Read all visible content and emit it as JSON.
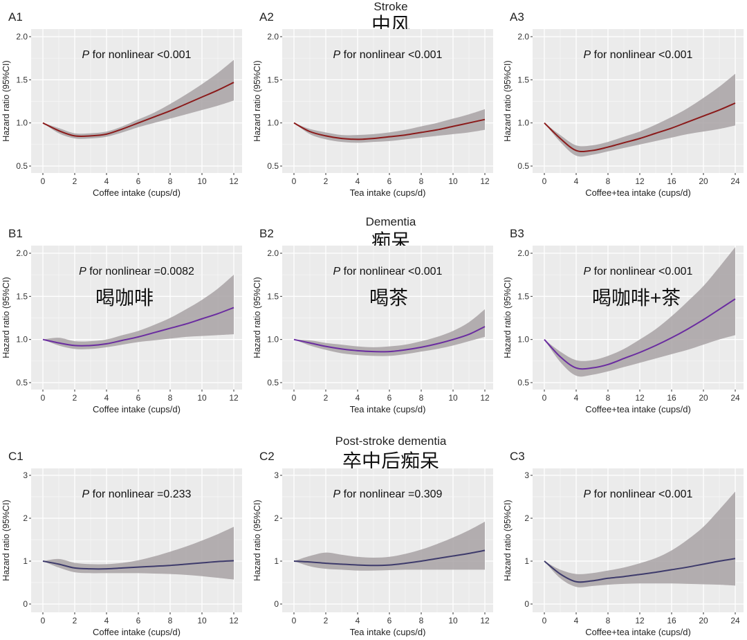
{
  "section_titles": [
    {
      "en": "Stroke",
      "zh": "中风"
    },
    {
      "en": "Dementia",
      "zh": "痴呆"
    },
    {
      "en": "Post-stroke dementia",
      "zh": "卒中后痴呆"
    }
  ],
  "annotations": [
    "喝咖啡",
    "喝茶",
    "喝咖啡+茶"
  ],
  "colors": {
    "row_a_line": "#8b1a1a",
    "row_b_line": "#6a2ca0",
    "row_c_line": "#3d3a6b",
    "ribbon": "#a8a2a5",
    "panel_bg": "#ebebeb",
    "grid": "#ffffff"
  },
  "chart_data": [
    {
      "type": "line",
      "label": "A1",
      "title_p": "P",
      "title_rest": " for nonlinear <0.001",
      "xlabel": "Coffee intake (cups/d)",
      "ylabel": "Hazard ratio (95%CI)",
      "xlim": [
        0,
        12
      ],
      "ylim": [
        0.5,
        2.0
      ],
      "grid": true,
      "x": [
        0,
        1,
        2,
        3,
        4,
        5,
        6,
        7,
        8,
        9,
        10,
        11,
        12
      ],
      "xticks": [
        "0",
        "2",
        "4",
        "6",
        "8",
        "10",
        "12"
      ],
      "yticks": [
        "0.5",
        "1.0",
        "1.5",
        "2.0"
      ],
      "estimate": [
        1.0,
        0.91,
        0.85,
        0.85,
        0.87,
        0.93,
        1.0,
        1.07,
        1.14,
        1.22,
        1.3,
        1.38,
        1.47
      ],
      "lower": [
        1.0,
        0.88,
        0.82,
        0.82,
        0.84,
        0.89,
        0.95,
        1.0,
        1.05,
        1.1,
        1.15,
        1.2,
        1.26
      ],
      "upper": [
        1.0,
        0.94,
        0.88,
        0.88,
        0.9,
        0.96,
        1.04,
        1.12,
        1.22,
        1.33,
        1.45,
        1.58,
        1.73
      ]
    },
    {
      "type": "line",
      "label": "A2",
      "title_p": "P",
      "title_rest": " for nonlinear <0.001",
      "xlabel": "Tea intake (cups/d)",
      "ylabel": "Hazard ratio (95%CI)",
      "xlim": [
        0,
        12
      ],
      "ylim": [
        0.5,
        2.0
      ],
      "grid": true,
      "x": [
        0,
        1,
        2,
        3,
        4,
        5,
        6,
        7,
        8,
        9,
        10,
        11,
        12
      ],
      "xticks": [
        "0",
        "2",
        "4",
        "6",
        "8",
        "10",
        "12"
      ],
      "yticks": [
        "0.5",
        "1.0",
        "1.5",
        "2.0"
      ],
      "estimate": [
        1.0,
        0.9,
        0.85,
        0.82,
        0.81,
        0.82,
        0.84,
        0.86,
        0.89,
        0.92,
        0.96,
        1.0,
        1.04
      ],
      "lower": [
        1.0,
        0.87,
        0.81,
        0.78,
        0.77,
        0.78,
        0.79,
        0.81,
        0.83,
        0.85,
        0.87,
        0.89,
        0.92
      ],
      "upper": [
        1.0,
        0.93,
        0.89,
        0.86,
        0.86,
        0.87,
        0.89,
        0.92,
        0.96,
        1.0,
        1.05,
        1.1,
        1.16
      ]
    },
    {
      "type": "line",
      "label": "A3",
      "title_p": "P",
      "title_rest": " for nonlinear <0.001",
      "xlabel": "Coffee+tea intake (cups/d)",
      "ylabel": "Hazard ratio (95%CI)",
      "xlim": [
        0,
        24
      ],
      "ylim": [
        0.5,
        2.0
      ],
      "grid": true,
      "x": [
        0,
        2,
        4,
        6,
        8,
        10,
        12,
        14,
        16,
        18,
        20,
        22,
        24
      ],
      "xticks": [
        "0",
        "4",
        "8",
        "12",
        "16",
        "20",
        "24"
      ],
      "yticks": [
        "0.5",
        "1.0",
        "1.5",
        "2.0"
      ],
      "estimate": [
        1.0,
        0.82,
        0.68,
        0.68,
        0.72,
        0.77,
        0.82,
        0.88,
        0.94,
        1.01,
        1.08,
        1.15,
        1.23
      ],
      "lower": [
        1.0,
        0.78,
        0.62,
        0.63,
        0.67,
        0.71,
        0.75,
        0.79,
        0.83,
        0.87,
        0.9,
        0.93,
        0.97
      ],
      "upper": [
        1.0,
        0.86,
        0.74,
        0.74,
        0.78,
        0.84,
        0.9,
        0.98,
        1.07,
        1.17,
        1.29,
        1.42,
        1.57
      ]
    },
    {
      "type": "line",
      "label": "B1",
      "title_p": "P",
      "title_rest": " for nonlinear =0.0082",
      "xlabel": "Coffee intake (cups/d)",
      "ylabel": "Hazard ratio (95%CI)",
      "xlim": [
        0,
        12
      ],
      "ylim": [
        0.5,
        2.0
      ],
      "grid": true,
      "x": [
        0,
        1,
        2,
        3,
        4,
        5,
        6,
        7,
        8,
        9,
        10,
        11,
        12
      ],
      "xticks": [
        "0",
        "2",
        "4",
        "6",
        "8",
        "10",
        "12"
      ],
      "yticks": [
        "0.5",
        "1.0",
        "1.5",
        "2.0"
      ],
      "estimate": [
        1.0,
        0.96,
        0.93,
        0.93,
        0.95,
        0.99,
        1.03,
        1.08,
        1.13,
        1.18,
        1.24,
        1.3,
        1.37
      ],
      "lower": [
        1.0,
        0.93,
        0.89,
        0.89,
        0.91,
        0.94,
        0.97,
        0.99,
        1.01,
        1.03,
        1.04,
        1.05,
        1.06
      ],
      "upper": [
        1.0,
        1.02,
        0.98,
        0.98,
        1.0,
        1.05,
        1.1,
        1.17,
        1.25,
        1.35,
        1.46,
        1.59,
        1.75
      ]
    },
    {
      "type": "line",
      "label": "B2",
      "title_p": "P",
      "title_rest": " for nonlinear <0.001",
      "xlabel": "Tea intake (cups/d)",
      "ylabel": "Hazard ratio (95%CI)",
      "xlim": [
        0,
        12
      ],
      "ylim": [
        0.5,
        2.0
      ],
      "grid": true,
      "x": [
        0,
        1,
        2,
        3,
        4,
        5,
        6,
        7,
        8,
        9,
        10,
        11,
        12
      ],
      "xticks": [
        "0",
        "2",
        "4",
        "6",
        "8",
        "10",
        "12"
      ],
      "yticks": [
        "0.5",
        "1.0",
        "1.5",
        "2.0"
      ],
      "estimate": [
        1.0,
        0.96,
        0.92,
        0.89,
        0.87,
        0.86,
        0.86,
        0.88,
        0.91,
        0.95,
        1.0,
        1.06,
        1.15
      ],
      "lower": [
        1.0,
        0.93,
        0.88,
        0.84,
        0.82,
        0.81,
        0.81,
        0.83,
        0.86,
        0.89,
        0.93,
        0.98,
        1.03
      ],
      "upper": [
        1.0,
        0.99,
        0.96,
        0.94,
        0.92,
        0.91,
        0.92,
        0.94,
        0.98,
        1.03,
        1.1,
        1.2,
        1.35
      ]
    },
    {
      "type": "line",
      "label": "B3",
      "title_p": "P",
      "title_rest": " for nonlinear <0.001",
      "xlabel": "Coffee+tea intake (cups/d)",
      "ylabel": "Hazard ratio (95%CI)",
      "xlim": [
        0,
        24
      ],
      "ylim": [
        0.5,
        2.0
      ],
      "grid": true,
      "x": [
        0,
        2,
        4,
        6,
        8,
        10,
        12,
        14,
        16,
        18,
        20,
        22,
        24
      ],
      "xticks": [
        "0",
        "4",
        "8",
        "12",
        "16",
        "20",
        "24"
      ],
      "yticks": [
        "0.5",
        "1.0",
        "1.5",
        "2.0"
      ],
      "estimate": [
        1.0,
        0.8,
        0.67,
        0.67,
        0.71,
        0.78,
        0.85,
        0.93,
        1.02,
        1.12,
        1.23,
        1.35,
        1.47
      ],
      "lower": [
        1.0,
        0.74,
        0.58,
        0.59,
        0.63,
        0.68,
        0.73,
        0.78,
        0.83,
        0.88,
        0.94,
        1.0,
        1.05
      ],
      "upper": [
        1.0,
        0.86,
        0.76,
        0.76,
        0.81,
        0.89,
        1.0,
        1.12,
        1.27,
        1.44,
        1.62,
        1.84,
        2.07
      ]
    },
    {
      "type": "line",
      "label": "C1",
      "title_p": "P",
      "title_rest": " for nonlinear =0.233",
      "xlabel": "Coffee intake (cups/d)",
      "ylabel": "Hazard ratio (95%CI)",
      "xlim": [
        0,
        12
      ],
      "ylim": [
        0,
        3
      ],
      "grid": true,
      "x": [
        0,
        1,
        2,
        3,
        4,
        5,
        6,
        7,
        8,
        9,
        10,
        11,
        12
      ],
      "xticks": [
        "0",
        "2",
        "4",
        "6",
        "8",
        "10",
        "12"
      ],
      "yticks": [
        "0",
        "1",
        "2",
        "3"
      ],
      "estimate": [
        1.0,
        0.93,
        0.84,
        0.82,
        0.82,
        0.84,
        0.86,
        0.88,
        0.9,
        0.93,
        0.96,
        0.99,
        1.01
      ],
      "lower": [
        1.0,
        0.85,
        0.74,
        0.72,
        0.72,
        0.72,
        0.72,
        0.71,
        0.7,
        0.68,
        0.65,
        0.61,
        0.57
      ],
      "upper": [
        1.0,
        1.05,
        0.96,
        0.93,
        0.93,
        0.96,
        1.02,
        1.11,
        1.22,
        1.34,
        1.48,
        1.63,
        1.8
      ]
    },
    {
      "type": "line",
      "label": "C2",
      "title_p": "P",
      "title_rest": " for nonlinear =0.309",
      "xlabel": "Tea intake (cups/d)",
      "ylabel": "Hazard ratio (95%CI)",
      "xlim": [
        0,
        12
      ],
      "ylim": [
        0,
        3
      ],
      "grid": true,
      "x": [
        0,
        1,
        2,
        3,
        4,
        5,
        6,
        7,
        8,
        9,
        10,
        11,
        12
      ],
      "xticks": [
        "0",
        "2",
        "4",
        "6",
        "8",
        "10",
        "12"
      ],
      "yticks": [
        "0",
        "1",
        "2",
        "3"
      ],
      "estimate": [
        1.0,
        0.98,
        0.95,
        0.93,
        0.91,
        0.9,
        0.91,
        0.95,
        1.0,
        1.06,
        1.12,
        1.18,
        1.25
      ],
      "lower": [
        1.0,
        0.88,
        0.82,
        0.8,
        0.78,
        0.78,
        0.79,
        0.8,
        0.8,
        0.8,
        0.8,
        0.8,
        0.8
      ],
      "upper": [
        1.0,
        1.12,
        1.2,
        1.15,
        1.1,
        1.08,
        1.1,
        1.17,
        1.27,
        1.4,
        1.55,
        1.72,
        1.92
      ]
    },
    {
      "type": "line",
      "label": "C3",
      "title_p": "P",
      "title_rest": " for nonlinear <0.001",
      "xlabel": "Coffee+tea intake (cups/d)",
      "ylabel": "Hazard ratio (95%CI)",
      "xlim": [
        0,
        24
      ],
      "ylim": [
        0,
        3
      ],
      "grid": true,
      "x": [
        0,
        2,
        4,
        6,
        8,
        10,
        12,
        14,
        16,
        18,
        20,
        22,
        24
      ],
      "xticks": [
        "0",
        "4",
        "8",
        "12",
        "16",
        "20",
        "24"
      ],
      "yticks": [
        "0",
        "1",
        "2",
        "3"
      ],
      "estimate": [
        1.0,
        0.7,
        0.52,
        0.54,
        0.6,
        0.64,
        0.69,
        0.74,
        0.8,
        0.86,
        0.93,
        1.0,
        1.06
      ],
      "lower": [
        1.0,
        0.6,
        0.4,
        0.42,
        0.45,
        0.47,
        0.48,
        0.48,
        0.48,
        0.47,
        0.46,
        0.45,
        0.43
      ],
      "upper": [
        1.0,
        0.8,
        0.7,
        0.72,
        0.78,
        0.85,
        0.95,
        1.07,
        1.25,
        1.5,
        1.8,
        2.2,
        2.62
      ]
    }
  ]
}
